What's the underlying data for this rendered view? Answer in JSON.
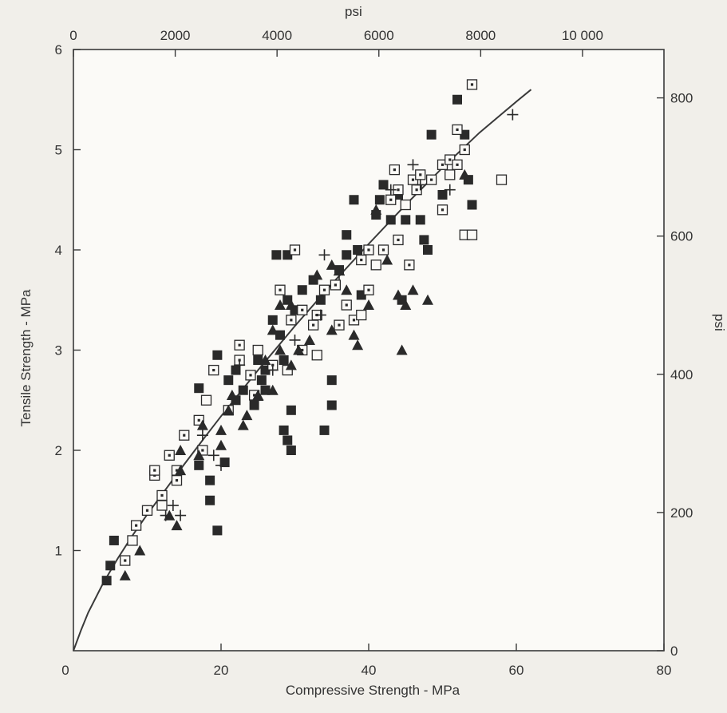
{
  "chart_data": {
    "type": "scatter",
    "title": "",
    "xlabel": "Compressive Strength - MPa",
    "ylabel": "Tensile Strength - MPa",
    "x2label": "psi",
    "y2label": "psi",
    "xlim": [
      0,
      80
    ],
    "ylim": [
      0,
      6
    ],
    "x2lim": [
      0,
      11600
    ],
    "y2lim": [
      0,
      870
    ],
    "grid": false,
    "xticks": [
      "0",
      "20",
      "40",
      "60",
      "80"
    ],
    "yticks": [
      "1",
      "2",
      "3",
      "4",
      "5",
      "6"
    ],
    "x2ticks": [
      "0",
      "2000",
      "4000",
      "6000",
      "8000",
      "10 000"
    ],
    "y2ticks": [
      "0",
      "200",
      "400",
      "600",
      "800"
    ],
    "origin_label": "0",
    "series": [
      {
        "marker": "filled-square",
        "points": [
          [
            4.5,
            0.7
          ],
          [
            5.5,
            1.1
          ],
          [
            5,
            0.85
          ],
          [
            17,
            2.62
          ],
          [
            19.5,
            2.95
          ],
          [
            17,
            1.85
          ],
          [
            18.5,
            1.7
          ],
          [
            18.5,
            1.5
          ],
          [
            19.5,
            1.2
          ],
          [
            20.5,
            1.88
          ],
          [
            22,
            2.5
          ],
          [
            21,
            2.7
          ],
          [
            22,
            2.8
          ],
          [
            23,
            2.6
          ],
          [
            24,
            2.75
          ],
          [
            24.5,
            2.45
          ],
          [
            25,
            2.9
          ],
          [
            26,
            2.8
          ],
          [
            26,
            2.6
          ],
          [
            25.5,
            2.7
          ],
          [
            27,
            3.3
          ],
          [
            28,
            3.15
          ],
          [
            28.5,
            2.9
          ],
          [
            29,
            3.5
          ],
          [
            27.5,
            3.95
          ],
          [
            29,
            3.95
          ],
          [
            28.5,
            2.2
          ],
          [
            29,
            2.1
          ],
          [
            29.5,
            2.0
          ],
          [
            29.5,
            2.4
          ],
          [
            30,
            3.4
          ],
          [
            31,
            3.6
          ],
          [
            32.5,
            3.7
          ],
          [
            33.5,
            3.5
          ],
          [
            34,
            2.2
          ],
          [
            35,
            2.45
          ],
          [
            35,
            2.7
          ],
          [
            36,
            3.8
          ],
          [
            37,
            3.95
          ],
          [
            37,
            4.15
          ],
          [
            38,
            4.5
          ],
          [
            38.5,
            4.0
          ],
          [
            39,
            3.55
          ],
          [
            41,
            4.35
          ],
          [
            41.5,
            4.5
          ],
          [
            42,
            4.65
          ],
          [
            43,
            4.3
          ],
          [
            44,
            4.55
          ],
          [
            45,
            4.3
          ],
          [
            44.5,
            3.5
          ],
          [
            47,
            4.3
          ],
          [
            47.5,
            4.1
          ],
          [
            48,
            4.0
          ],
          [
            48.5,
            5.15
          ],
          [
            50,
            4.55
          ],
          [
            52,
            5.5
          ],
          [
            53,
            5.15
          ],
          [
            53.5,
            4.7
          ],
          [
            54,
            4.45
          ]
        ]
      },
      {
        "marker": "dotted-square",
        "points": [
          [
            7,
            0.9
          ],
          [
            8.5,
            1.25
          ],
          [
            10,
            1.4
          ],
          [
            11,
            1.75
          ],
          [
            11,
            1.8
          ],
          [
            12,
            1.55
          ],
          [
            13,
            1.95
          ],
          [
            14,
            1.7
          ],
          [
            14,
            1.8
          ],
          [
            15,
            2.15
          ],
          [
            17,
            2.3
          ],
          [
            17.5,
            2.0
          ],
          [
            19,
            2.8
          ],
          [
            21,
            2.4
          ],
          [
            22.5,
            3.05
          ],
          [
            22.5,
            2.9
          ],
          [
            24,
            2.75
          ],
          [
            24.5,
            2.55
          ],
          [
            27,
            2.85
          ],
          [
            28,
            3.6
          ],
          [
            29.5,
            3.3
          ],
          [
            30,
            4.0
          ],
          [
            31,
            3.0
          ],
          [
            31,
            3.4
          ],
          [
            32.5,
            3.25
          ],
          [
            33,
            3.35
          ],
          [
            34,
            3.6
          ],
          [
            35.5,
            3.65
          ],
          [
            36,
            3.25
          ],
          [
            37,
            3.45
          ],
          [
            38,
            3.3
          ],
          [
            39,
            3.9
          ],
          [
            40,
            3.6
          ],
          [
            40,
            4.0
          ],
          [
            42,
            4.0
          ],
          [
            43,
            4.5
          ],
          [
            43.5,
            4.8
          ],
          [
            44,
            4.6
          ],
          [
            44,
            4.1
          ],
          [
            45.5,
            3.85
          ],
          [
            46,
            4.7
          ],
          [
            46.5,
            4.6
          ],
          [
            47,
            4.75
          ],
          [
            48.5,
            4.7
          ],
          [
            50,
            4.85
          ],
          [
            50,
            4.4
          ],
          [
            51,
            4.9
          ],
          [
            52,
            4.85
          ],
          [
            53,
            5.0
          ],
          [
            52,
            5.2
          ],
          [
            54,
            5.65
          ]
        ]
      },
      {
        "marker": "open-square",
        "points": [
          [
            8,
            1.1
          ],
          [
            12,
            1.45
          ],
          [
            18,
            2.5
          ],
          [
            25,
            3.0
          ],
          [
            29,
            2.8
          ],
          [
            33,
            2.95
          ],
          [
            39,
            3.35
          ],
          [
            41,
            3.85
          ],
          [
            45,
            4.45
          ],
          [
            51,
            4.75
          ],
          [
            53,
            4.15
          ],
          [
            54,
            4.15
          ],
          [
            58,
            4.7
          ]
        ]
      },
      {
        "marker": "filled-triangle",
        "points": [
          [
            7,
            0.75
          ],
          [
            9,
            1.0
          ],
          [
            13,
            1.35
          ],
          [
            14,
            1.25
          ],
          [
            14.5,
            2.0
          ],
          [
            14.5,
            1.8
          ],
          [
            17,
            1.95
          ],
          [
            17.5,
            2.25
          ],
          [
            20,
            2.05
          ],
          [
            20,
            2.2
          ],
          [
            21,
            2.4
          ],
          [
            21.5,
            2.55
          ],
          [
            23,
            2.25
          ],
          [
            23.5,
            2.35
          ],
          [
            25,
            2.55
          ],
          [
            26,
            2.9
          ],
          [
            27,
            2.6
          ],
          [
            27,
            3.2
          ],
          [
            28,
            3.0
          ],
          [
            28,
            3.45
          ],
          [
            29.5,
            3.45
          ],
          [
            29.5,
            2.85
          ],
          [
            30.5,
            3.0
          ],
          [
            32,
            3.1
          ],
          [
            33,
            3.75
          ],
          [
            35,
            3.85
          ],
          [
            35,
            3.2
          ],
          [
            37,
            3.6
          ],
          [
            38,
            3.15
          ],
          [
            38.5,
            3.05
          ],
          [
            40,
            3.45
          ],
          [
            41,
            4.4
          ],
          [
            42.5,
            3.9
          ],
          [
            44,
            3.55
          ],
          [
            44.5,
            3.0
          ],
          [
            45,
            3.45
          ],
          [
            46,
            3.6
          ],
          [
            48,
            3.5
          ],
          [
            53,
            4.75
          ]
        ]
      },
      {
        "marker": "plus",
        "points": [
          [
            12.5,
            1.35
          ],
          [
            13.5,
            1.45
          ],
          [
            14.5,
            1.35
          ],
          [
            17.5,
            2.15
          ],
          [
            19,
            1.95
          ],
          [
            20,
            1.85
          ],
          [
            22.5,
            2.85
          ],
          [
            25,
            2.5
          ],
          [
            27,
            2.8
          ],
          [
            30,
            3.1
          ],
          [
            33.5,
            3.35
          ],
          [
            34,
            3.95
          ],
          [
            36,
            3.75
          ],
          [
            43,
            4.6
          ],
          [
            46,
            4.85
          ],
          [
            47,
            4.65
          ],
          [
            51,
            4.6
          ],
          [
            59.5,
            5.35
          ]
        ]
      }
    ],
    "trendline": {
      "x": [
        0,
        1,
        2,
        4,
        6,
        8,
        10,
        12,
        15,
        18,
        20,
        25,
        30,
        35,
        40,
        45,
        50,
        55,
        60,
        62
      ],
      "y": [
        0,
        0.2,
        0.38,
        0.67,
        0.92,
        1.15,
        1.36,
        1.56,
        1.86,
        2.15,
        2.34,
        2.8,
        3.24,
        3.66,
        4.06,
        4.45,
        4.82,
        5.17,
        5.48,
        5.6
      ]
    }
  }
}
